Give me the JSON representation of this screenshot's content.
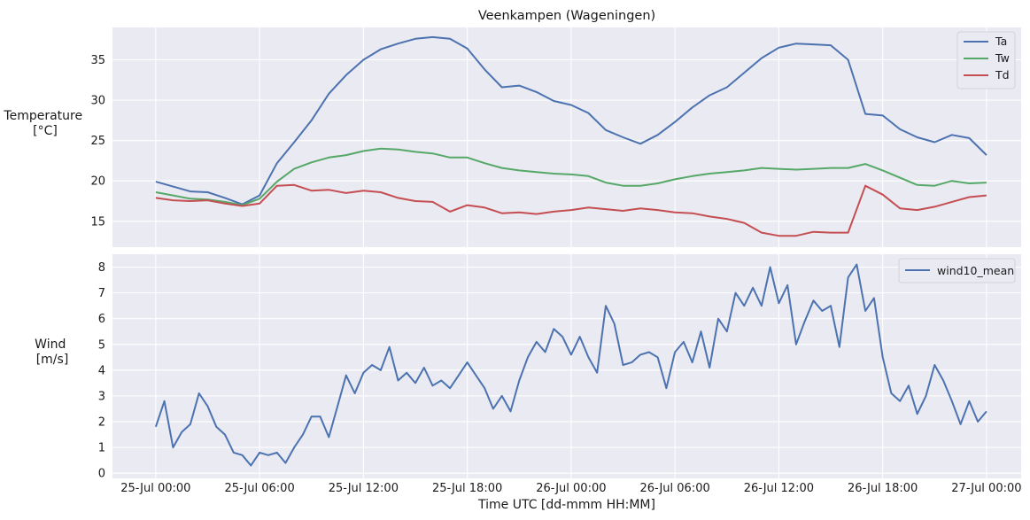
{
  "figure": {
    "title": "Veenkampen (Wageningen)",
    "xlabel": "Time UTC [dd-mmm HH:MM]",
    "xticks": [
      "25-Jul 00:00",
      "25-Jul 06:00",
      "25-Jul 12:00",
      "25-Jul 18:00",
      "26-Jul 00:00",
      "26-Jul 06:00",
      "26-Jul 12:00",
      "26-Jul 18:00",
      "27-Jul 00:00"
    ]
  },
  "chart_data": [
    {
      "type": "line",
      "ylabel_lines": [
        "Temperature",
        "[°C]"
      ],
      "xlim_hours": [
        -2.5,
        50
      ],
      "ylim": [
        11.8,
        39
      ],
      "yticks": [
        "15",
        "20",
        "25",
        "30",
        "35"
      ],
      "yticks_values": [
        15,
        20,
        25,
        30,
        35
      ],
      "grid": true,
      "legend": "top-right",
      "x_hours": [
        0,
        1,
        2,
        3,
        4,
        5,
        6,
        7,
        8,
        9,
        10,
        11,
        12,
        13,
        14,
        15,
        16,
        17,
        18,
        19,
        20,
        21,
        22,
        23,
        24,
        25,
        26,
        27,
        28,
        29,
        30,
        31,
        32,
        33,
        34,
        35,
        36,
        37,
        38,
        39,
        40,
        41,
        42,
        43,
        44,
        45,
        46,
        47,
        48
      ],
      "series": [
        {
          "name": "Ta",
          "color": "#4c72b0",
          "values": [
            19.9,
            19.3,
            18.7,
            18.6,
            17.9,
            17.1,
            18.2,
            22.2,
            24.8,
            27.5,
            30.8,
            33.1,
            35.0,
            36.3,
            37.0,
            37.6,
            37.8,
            37.6,
            36.4,
            33.8,
            31.6,
            31.8,
            31.0,
            29.9,
            29.4,
            28.4,
            26.3,
            25.4,
            24.6,
            25.7,
            27.3,
            29.1,
            30.6,
            31.6,
            33.4,
            35.2,
            36.5,
            37.0,
            36.9,
            36.8,
            35.0,
            28.3,
            28.1,
            26.4,
            25.4,
            24.8,
            25.7,
            25.3,
            23.2
          ]
        },
        {
          "name": "Tw",
          "color": "#55a868",
          "values": [
            18.6,
            18.2,
            17.8,
            17.7,
            17.4,
            17.0,
            17.8,
            19.9,
            21.5,
            22.3,
            22.9,
            23.2,
            23.7,
            24.0,
            23.9,
            23.6,
            23.4,
            22.9,
            22.9,
            22.2,
            21.6,
            21.3,
            21.1,
            20.9,
            20.8,
            20.6,
            19.8,
            19.4,
            19.4,
            19.7,
            20.2,
            20.6,
            20.9,
            21.1,
            21.3,
            21.6,
            21.5,
            21.4,
            21.5,
            21.6,
            21.6,
            22.1,
            21.3,
            20.4,
            19.5,
            19.4,
            20.0,
            19.7,
            19.8
          ]
        },
        {
          "name": "Td",
          "color": "#c44e52",
          "values": [
            17.9,
            17.6,
            17.5,
            17.6,
            17.2,
            16.9,
            17.2,
            19.4,
            19.5,
            18.8,
            18.9,
            18.5,
            18.8,
            18.6,
            17.9,
            17.5,
            17.4,
            16.2,
            17.0,
            16.7,
            16.0,
            16.1,
            15.9,
            16.2,
            16.4,
            16.7,
            16.5,
            16.3,
            16.6,
            16.4,
            16.1,
            16.0,
            15.6,
            15.3,
            14.8,
            13.6,
            13.2,
            13.2,
            13.7,
            13.6,
            13.6,
            19.4,
            18.3,
            16.6,
            16.4,
            16.8,
            17.4,
            18.0,
            18.2
          ]
        }
      ]
    },
    {
      "type": "line",
      "ylabel_lines": [
        "Wind",
        "[m/s]"
      ],
      "xlim_hours": [
        -2.5,
        50
      ],
      "ylim": [
        -0.2,
        8.5
      ],
      "yticks": [
        "0",
        "1",
        "2",
        "3",
        "4",
        "5",
        "6",
        "7",
        "8"
      ],
      "yticks_values": [
        0,
        1,
        2,
        3,
        4,
        5,
        6,
        7,
        8
      ],
      "grid": true,
      "legend": "top-right",
      "x_hours": [
        0,
        0.5,
        1,
        1.5,
        2,
        2.5,
        3,
        3.5,
        4,
        4.5,
        5,
        5.5,
        6,
        6.5,
        7,
        7.5,
        8,
        8.5,
        9,
        9.5,
        10,
        10.5,
        11,
        11.5,
        12,
        12.5,
        13,
        13.5,
        14,
        14.5,
        15,
        15.5,
        16,
        16.5,
        17,
        17.5,
        18,
        18.5,
        19,
        19.5,
        20,
        20.5,
        21,
        21.5,
        22,
        22.5,
        23,
        23.5,
        24,
        24.5,
        25,
        25.5,
        26,
        26.5,
        27,
        27.5,
        28,
        28.5,
        29,
        29.5,
        30,
        30.5,
        31,
        31.5,
        32,
        32.5,
        33,
        33.5,
        34,
        34.5,
        35,
        35.5,
        36,
        36.5,
        37,
        37.5,
        38,
        38.5,
        39,
        39.5,
        40,
        40.5,
        41,
        41.5,
        42,
        42.5,
        43,
        43.5,
        44,
        44.5,
        45,
        45.5,
        46,
        46.5,
        47,
        47.5,
        48
      ],
      "series": [
        {
          "name": "wind10_mean",
          "color": "#4c72b0",
          "values": [
            1.8,
            2.8,
            1.0,
            1.6,
            1.9,
            3.1,
            2.6,
            1.8,
            1.5,
            0.8,
            0.7,
            0.3,
            0.8,
            0.7,
            0.8,
            0.4,
            1.0,
            1.5,
            2.2,
            2.2,
            1.4,
            2.6,
            3.8,
            3.1,
            3.9,
            4.2,
            4.0,
            4.9,
            3.6,
            3.9,
            3.5,
            4.1,
            3.4,
            3.6,
            3.3,
            3.8,
            4.3,
            3.8,
            3.3,
            2.5,
            3.0,
            2.4,
            3.6,
            4.5,
            5.1,
            4.7,
            5.6,
            5.3,
            4.6,
            5.3,
            4.5,
            3.9,
            6.5,
            5.8,
            4.2,
            4.3,
            4.6,
            4.7,
            4.5,
            3.3,
            4.7,
            5.1,
            4.3,
            5.5,
            4.1,
            6.0,
            5.5,
            7.0,
            6.5,
            7.2,
            6.5,
            8.0,
            6.6,
            7.3,
            5.0,
            5.9,
            6.7,
            6.3,
            6.5,
            4.9,
            7.6,
            8.1,
            6.3,
            6.8,
            4.5,
            3.1,
            2.8,
            3.4,
            2.3,
            3.0,
            4.2,
            3.6,
            2.8,
            1.9,
            2.8,
            2.0,
            2.4
          ]
        }
      ]
    }
  ]
}
